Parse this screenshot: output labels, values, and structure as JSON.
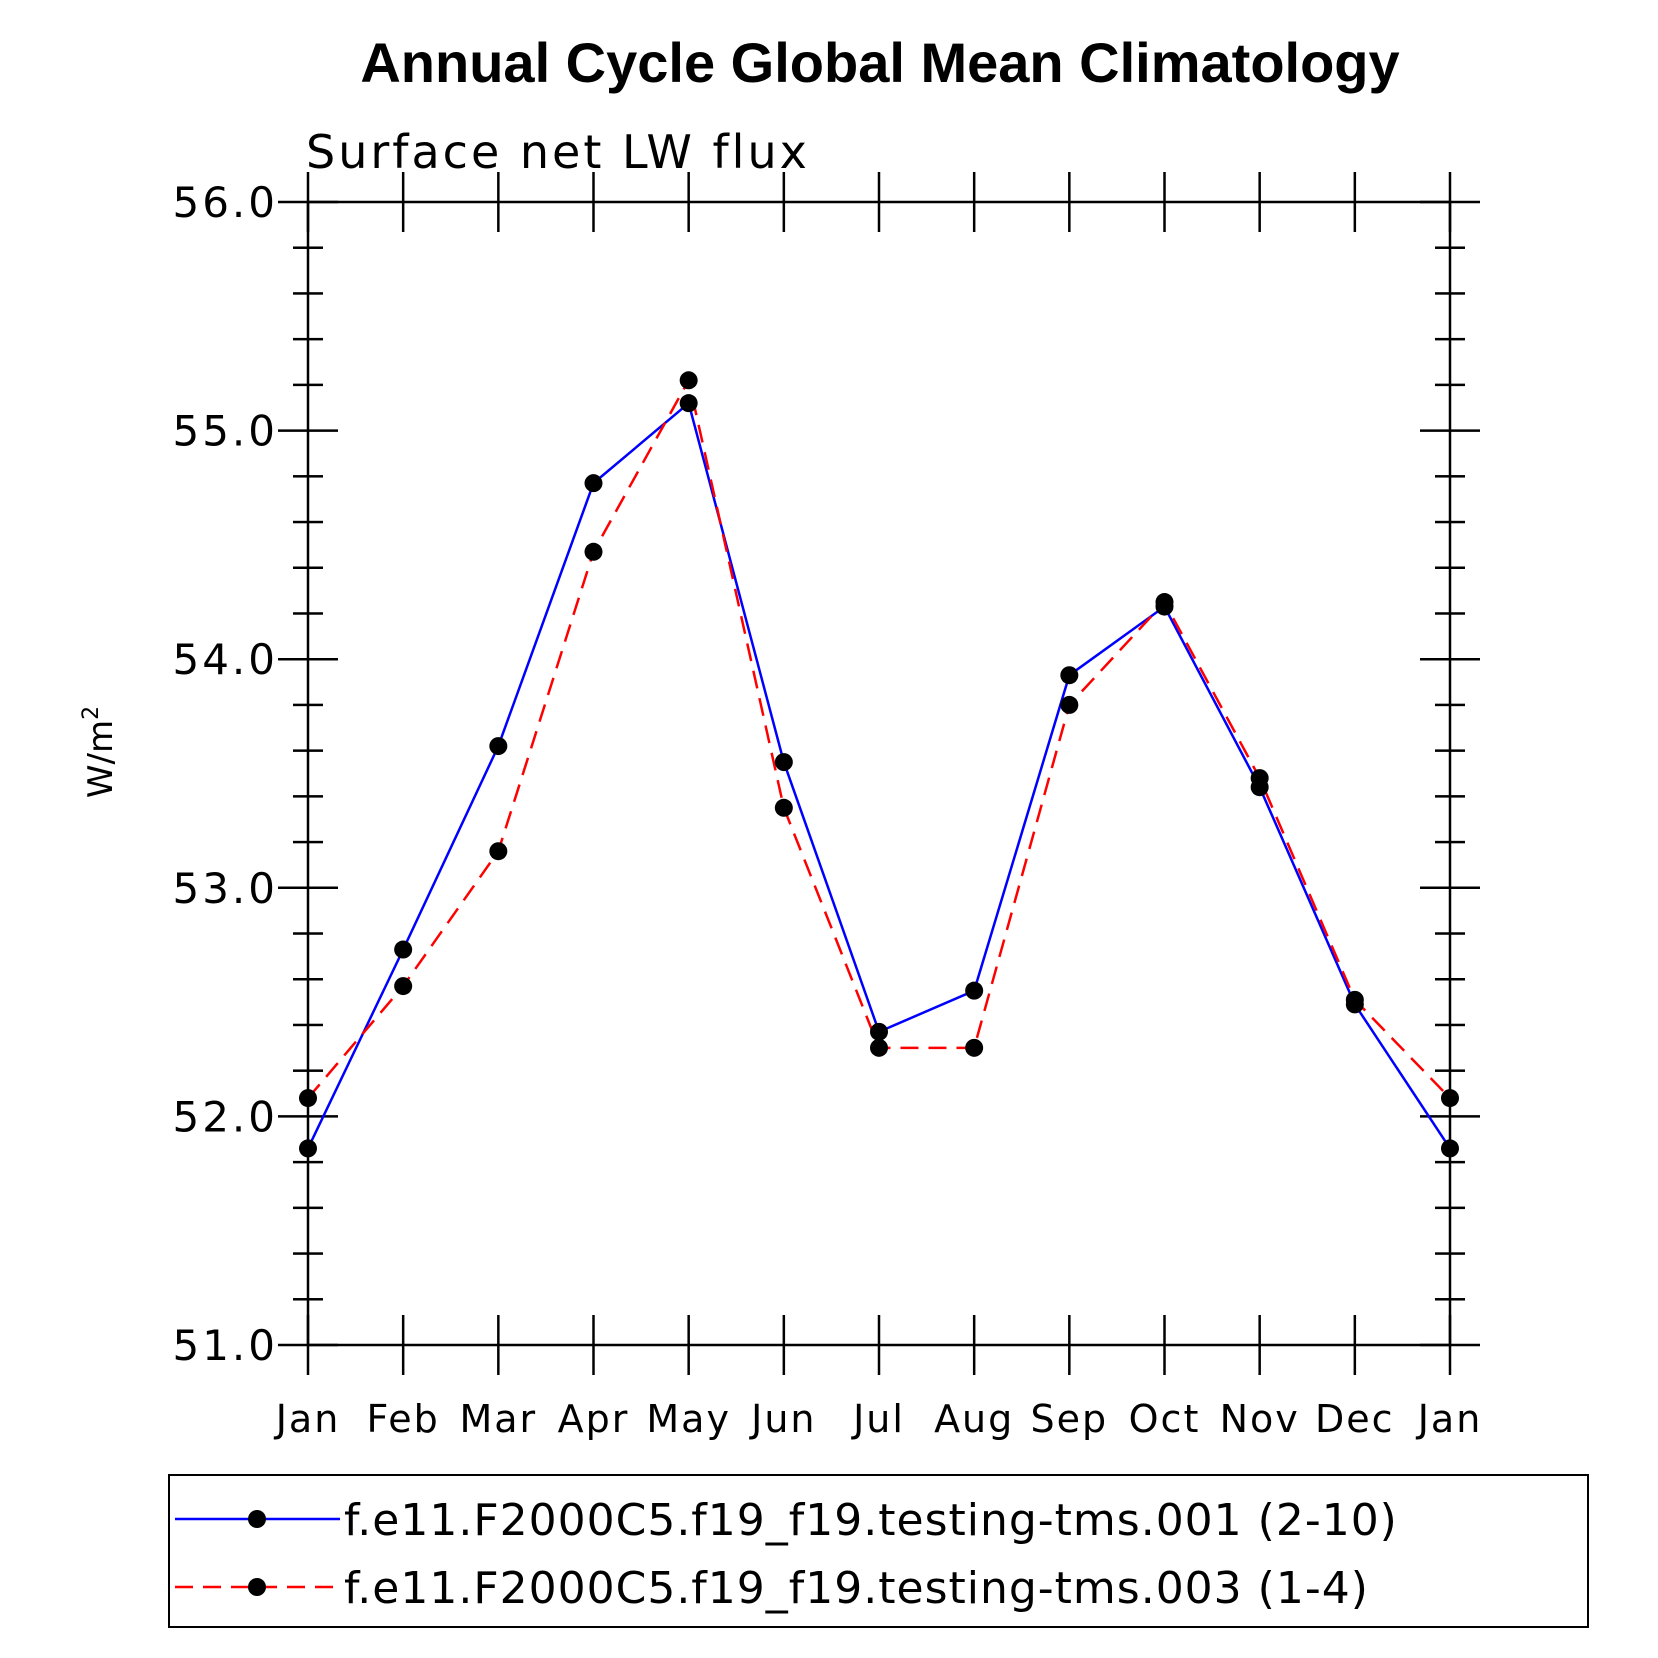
{
  "chart_data": {
    "type": "line",
    "title": "Annual Cycle Global Mean Climatology",
    "subtitle": "Surface net LW flux",
    "ylabel": "W/m",
    "ylabel_superscript": "2",
    "xlabel": "",
    "categories": [
      "Jan",
      "Feb",
      "Mar",
      "Apr",
      "May",
      "Jun",
      "Jul",
      "Aug",
      "Sep",
      "Oct",
      "Nov",
      "Dec",
      "Jan"
    ],
    "ylim": [
      51.0,
      56.0
    ],
    "yticks": [
      51.0,
      52.0,
      53.0,
      54.0,
      55.0,
      56.0
    ],
    "ytick_labels": [
      "51.0",
      "52.0",
      "53.0",
      "54.0",
      "55.0",
      "56.0"
    ],
    "y_minor_step": 0.2,
    "grid": false,
    "legend_position": "bottom",
    "series": [
      {
        "name": "f.e11.F2000C5.f19_f19.testing-tms.001 (2-10)",
        "color": "#0000ff",
        "style": "solid",
        "marker": "filled-circle",
        "values": [
          51.86,
          52.73,
          53.62,
          54.77,
          55.12,
          53.55,
          52.37,
          52.55,
          53.93,
          54.23,
          53.44,
          52.49,
          51.86
        ]
      },
      {
        "name": "f.e11.F2000C5.f19_f19.testing-tms.003 (1-4)",
        "color": "#ff0000",
        "style": "dashed",
        "marker": "filled-circle",
        "values": [
          52.08,
          52.57,
          53.16,
          54.47,
          55.22,
          53.35,
          52.3,
          52.3,
          53.8,
          54.25,
          53.48,
          52.51,
          52.08
        ]
      }
    ]
  }
}
